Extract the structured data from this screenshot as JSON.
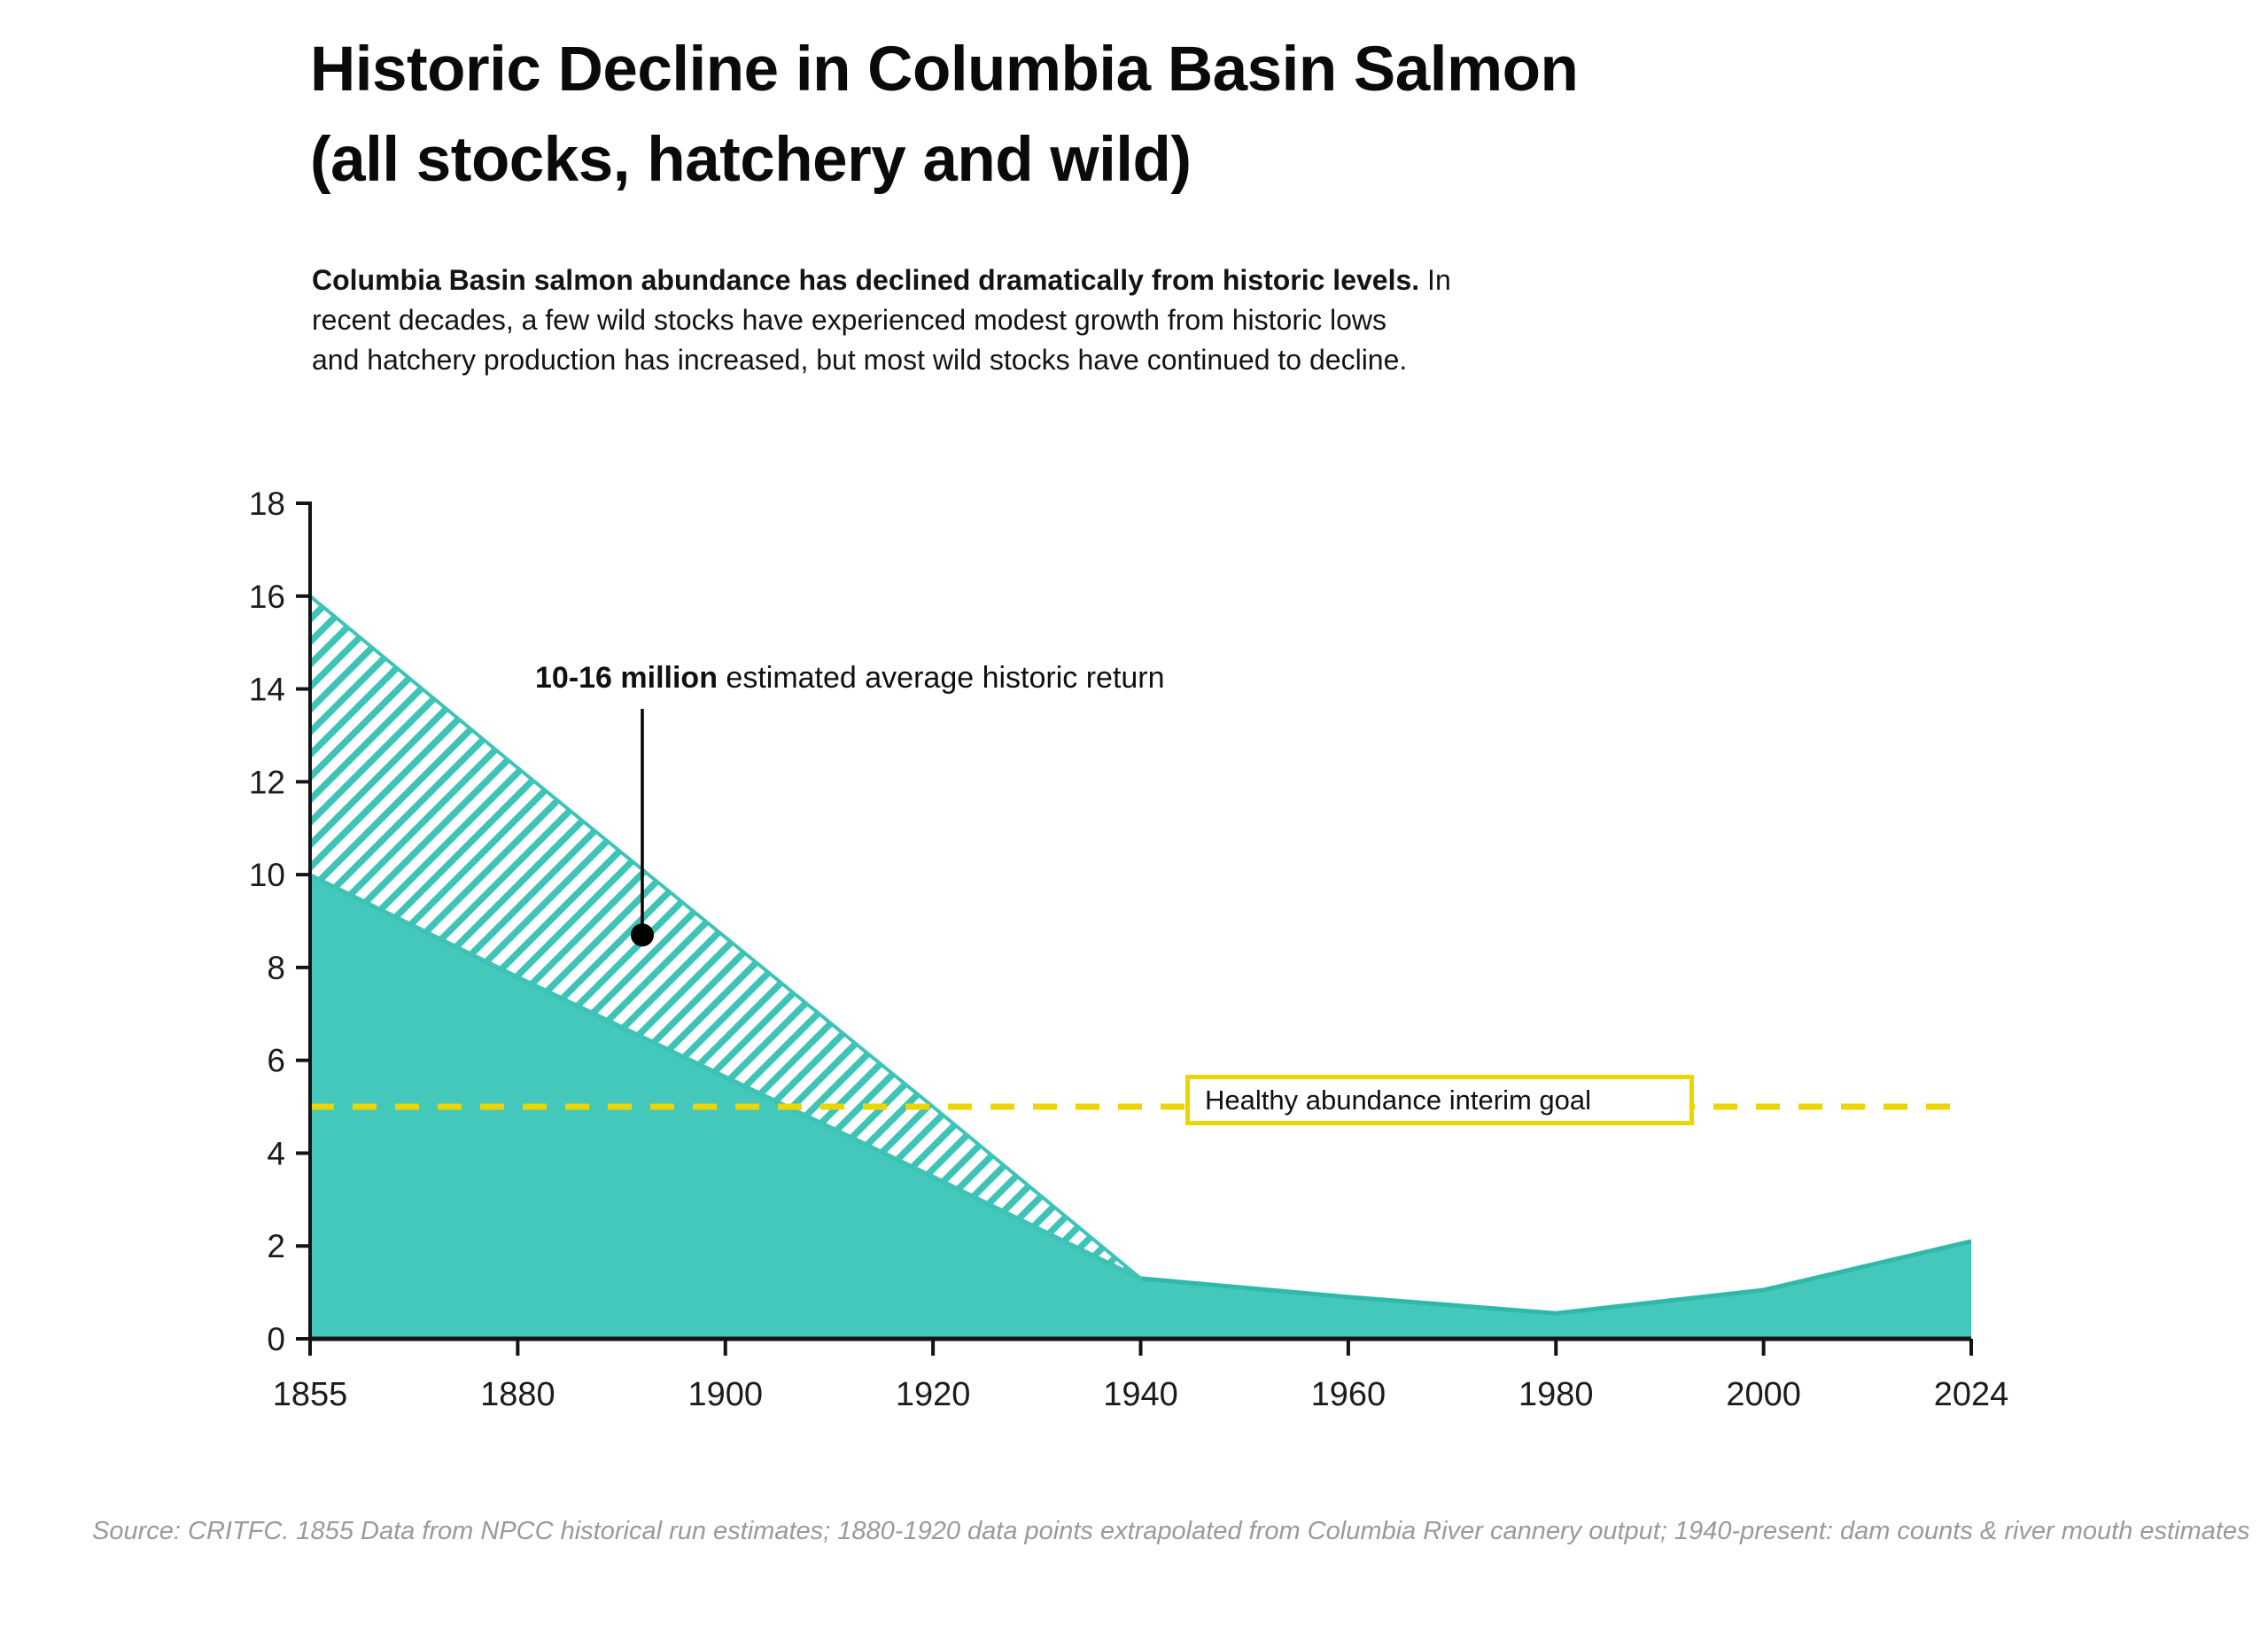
{
  "header": {
    "title_line1": "Historic Decline in Columbia Basin Salmon",
    "title_line2": "(all stocks, hatchery and wild)",
    "subtitle_l1_bold": "Columbia Basin salmon abundance has declined dramatically from historic levels.",
    "subtitle_l1_rest": " In",
    "subtitle_l2": "recent decades, a few wild stocks have experienced modest growth from historic lows",
    "subtitle_l3": "and hatchery production has increased, but most wild stocks have continued to decline."
  },
  "annotation": {
    "bold": "10-16 million",
    "rest": " estimated average historic return",
    "point_year": 1892,
    "point_value": 8.7
  },
  "goal": {
    "label": "Healthy abundance interim goal",
    "value": 5
  },
  "source": "Source: CRITFC. 1855 Data from NPCC historical run estimates; 1880-1920 data points extrapolated from Columbia River cannery output; 1940-present: dam counts & river mouth estimates",
  "colors": {
    "teal_fill": "#45C8BC",
    "teal_edge": "#2FB9AB",
    "hatch_stripe": "#3DC4B6",
    "goal_yellow": "#EDD500",
    "axis": "#141414",
    "tick_text": "#1c1c1c"
  },
  "chart_data": {
    "type": "area",
    "title": "Historic Decline in Columbia Basin Salmon (all stocks, hatchery and wild)",
    "x": [
      1855,
      1880,
      1900,
      1920,
      1940,
      1960,
      1980,
      2000,
      2024
    ],
    "xticks": [
      "1855",
      "1880",
      "1900",
      "1920",
      "1940",
      "1960",
      "1980",
      "2000",
      "2024"
    ],
    "series": [
      {
        "name": "estimated historic return upper bound (hatched band top)",
        "style": "hatched",
        "values": [
          16,
          12.3,
          8.65,
          5.0,
          1.3,
          null,
          null,
          null,
          null
        ]
      },
      {
        "name": "salmon return (all stocks, hatchery and wild)",
        "style": "solid",
        "values": [
          10,
          7.8,
          5.65,
          3.5,
          1.3,
          0.9,
          0.55,
          1.05,
          2.1
        ]
      }
    ],
    "ylim": [
      0,
      18
    ],
    "yticks": [
      0,
      2,
      4,
      6,
      8,
      10,
      12,
      14,
      16,
      18
    ],
    "goal_line_value": 5,
    "grid": "off",
    "legend": "none",
    "annotations": [
      "10-16 million estimated average historic return (band between series)",
      "Healthy abundance interim goal (yellow dashed line at 5)"
    ]
  }
}
